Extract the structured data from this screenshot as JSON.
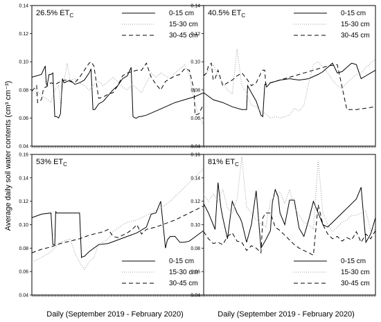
{
  "figure": {
    "ylabel": "Average daily soil water contents (cm³ cm⁻³)",
    "xlabel_left": "Daily (September 2019 - February 2020)",
    "xlabel_right": "Daily (September 2019 - February 2020)"
  },
  "chart_data": [
    {
      "type": "line",
      "title_main": "26.5% ET",
      "title_sub": "C",
      "ylim": [
        0.04,
        0.14
      ],
      "yticks": [
        "0.04",
        "0.06",
        "0.08",
        "0.10",
        "0.12",
        "0.14"
      ],
      "legend_position": "top-right",
      "x_range": [
        0,
        180
      ],
      "series": [
        {
          "name": "0-15 cm",
          "style": "solid",
          "x": [
            0,
            10,
            14,
            15,
            16,
            18,
            20,
            22,
            24,
            26,
            28,
            30,
            32,
            33,
            34,
            40,
            45,
            50,
            55,
            60,
            62,
            64,
            65,
            66,
            70,
            75,
            80,
            85,
            90,
            95,
            100,
            102,
            104,
            106,
            108,
            110,
            112,
            113,
            114,
            120,
            130,
            140,
            150,
            160,
            170,
            180
          ],
          "y": [
            0.089,
            0.091,
            0.097,
            0.085,
            0.083,
            0.091,
            0.091,
            0.092,
            0.061,
            0.061,
            0.06,
            0.063,
            0.088,
            0.086,
            0.085,
            0.087,
            0.084,
            0.085,
            0.087,
            0.092,
            0.095,
            0.066,
            0.066,
            0.066,
            0.07,
            0.072,
            0.076,
            0.08,
            0.083,
            0.088,
            0.09,
            0.093,
            0.096,
            0.061,
            0.06,
            0.06,
            0.061,
            0.061,
            0.061,
            0.062,
            0.065,
            0.068,
            0.071,
            0.073,
            0.075,
            0.078
          ]
        },
        {
          "name": "15-30 cm",
          "style": "dotted",
          "x": [
            0,
            4,
            5,
            6,
            10,
            15,
            20,
            22,
            25,
            28,
            30,
            33,
            35,
            37,
            40,
            45,
            50,
            55,
            60,
            65,
            70,
            75,
            80,
            85,
            90,
            95,
            100,
            105,
            110,
            115,
            120,
            125,
            130,
            135,
            140,
            145,
            150,
            155,
            160,
            165,
            170,
            175,
            180
          ],
          "y": [
            0.082,
            0.081,
            0.076,
            0.079,
            0.076,
            0.074,
            0.071,
            0.076,
            0.081,
            0.083,
            0.07,
            0.086,
            0.091,
            0.099,
            0.087,
            0.088,
            0.085,
            0.083,
            0.08,
            0.084,
            0.086,
            0.083,
            0.086,
            0.089,
            0.086,
            0.082,
            0.08,
            0.084,
            0.081,
            0.078,
            0.085,
            0.092,
            0.089,
            0.092,
            0.09,
            0.088,
            0.092,
            0.095,
            0.098,
            0.091,
            0.072,
            0.061,
            0.055
          ]
        },
        {
          "name": "30-45 cm",
          "style": "dashed",
          "x": [
            0,
            5,
            6,
            8,
            10,
            12,
            14,
            15,
            20,
            25,
            30,
            35,
            40,
            45,
            50,
            55,
            58,
            60,
            62,
            65,
            70,
            75,
            80,
            85,
            90,
            95,
            100,
            105,
            110,
            115,
            120,
            125,
            130,
            135,
            140,
            145,
            150,
            155,
            160,
            165,
            170,
            171,
            175,
            180
          ],
          "y": [
            0.079,
            0.083,
            0.071,
            0.072,
            0.073,
            0.08,
            0.082,
            0.082,
            0.085,
            0.084,
            0.086,
            0.087,
            0.086,
            0.085,
            0.089,
            0.094,
            0.097,
            0.099,
            0.1,
            0.097,
            0.074,
            0.075,
            0.077,
            0.078,
            0.083,
            0.09,
            0.092,
            0.093,
            0.094,
            0.094,
            0.099,
            0.089,
            0.084,
            0.08,
            0.086,
            0.088,
            0.09,
            0.091,
            0.095,
            0.094,
            0.08,
            0.062,
            0.063,
            0.07
          ]
        }
      ]
    },
    {
      "type": "line",
      "title_main": "40.5% ET",
      "title_sub": "C",
      "ylim": [
        0.04,
        0.14
      ],
      "yticks": [
        "0.04",
        "0.06",
        "0.08",
        "0.10",
        "0.12",
        "0.14"
      ],
      "legend_position": "top-right",
      "x_range": [
        0,
        180
      ],
      "series": [
        {
          "name": "0-15 cm",
          "style": "solid",
          "x": [
            0,
            10,
            20,
            30,
            40,
            45,
            46,
            50,
            55,
            60,
            62,
            64,
            65,
            66,
            70,
            80,
            90,
            100,
            110,
            120,
            125,
            130,
            135,
            140,
            145,
            150,
            155,
            160,
            165,
            170,
            175,
            180
          ],
          "y": [
            0.078,
            0.073,
            0.071,
            0.068,
            0.066,
            0.066,
            0.083,
            0.078,
            0.072,
            0.062,
            0.061,
            0.084,
            0.084,
            0.082,
            0.085,
            0.087,
            0.088,
            0.087,
            0.088,
            0.091,
            0.093,
            0.096,
            0.099,
            0.092,
            0.093,
            0.096,
            0.099,
            0.098,
            0.088,
            0.09,
            0.092,
            0.094
          ]
        },
        {
          "name": "15-30 cm",
          "style": "dotted",
          "x": [
            0,
            5,
            10,
            15,
            20,
            25,
            30,
            35,
            40,
            45,
            50,
            55,
            60,
            65,
            70,
            75,
            80,
            85,
            90,
            95,
            100,
            105,
            110,
            115,
            120,
            125,
            130,
            135,
            140,
            145,
            150,
            155,
            160,
            165,
            170,
            175,
            180
          ],
          "y": [
            0.089,
            0.094,
            0.098,
            0.09,
            0.085,
            0.08,
            0.077,
            0.109,
            0.083,
            0.078,
            0.069,
            0.068,
            0.065,
            0.063,
            0.06,
            0.061,
            0.06,
            0.061,
            0.062,
            0.067,
            0.065,
            0.069,
            0.085,
            0.098,
            0.1,
            0.096,
            0.092,
            0.087,
            0.083,
            0.081,
            0.085,
            0.088,
            0.091,
            0.092,
            0.096,
            0.099,
            0.102
          ]
        },
        {
          "name": "30-45 cm",
          "style": "dashed",
          "x": [
            0,
            3,
            5,
            8,
            10,
            12,
            14,
            15,
            20,
            25,
            30,
            35,
            40,
            45,
            50,
            55,
            60,
            62,
            64,
            65,
            70,
            80,
            90,
            100,
            110,
            120,
            130,
            140,
            150,
            160,
            170,
            180
          ],
          "y": [
            0.09,
            0.092,
            0.097,
            0.099,
            0.087,
            0.088,
            0.092,
            0.094,
            0.083,
            0.085,
            0.087,
            0.09,
            0.092,
            0.088,
            0.083,
            0.085,
            0.092,
            0.094,
            0.094,
            0.084,
            0.085,
            0.087,
            0.089,
            0.091,
            0.093,
            0.095,
            0.097,
            0.098,
            0.066,
            0.066,
            0.067,
            0.068
          ]
        }
      ]
    },
    {
      "type": "line",
      "title_main": "53% ET",
      "title_sub": "C",
      "ylim": [
        0.04,
        0.16
      ],
      "yticks": [
        "0.04",
        "0.06",
        "0.08",
        "0.10",
        "0.12",
        "0.14",
        "0.16"
      ],
      "legend_position": "bottom-right",
      "x_range": [
        0,
        180
      ],
      "series": [
        {
          "name": "0-15 cm",
          "style": "solid",
          "x": [
            0,
            10,
            20,
            22,
            24,
            25,
            26,
            30,
            35,
            40,
            45,
            50,
            52,
            54,
            55,
            60,
            70,
            80,
            90,
            100,
            110,
            120,
            125,
            130,
            135,
            140,
            142,
            145,
            150,
            155,
            160,
            165,
            170,
            175,
            180
          ],
          "y": [
            0.106,
            0.109,
            0.11,
            0.083,
            0.083,
            0.111,
            0.11,
            0.11,
            0.11,
            0.11,
            0.11,
            0.11,
            0.072,
            0.073,
            0.073,
            0.077,
            0.083,
            0.084,
            0.087,
            0.09,
            0.093,
            0.098,
            0.109,
            0.11,
            0.12,
            0.08,
            0.087,
            0.09,
            0.09,
            0.085,
            0.085,
            0.086,
            0.089,
            0.092,
            0.095
          ]
        },
        {
          "name": "15-30 cm",
          "style": "dotted",
          "x": [
            0,
            10,
            20,
            30,
            40,
            45,
            50,
            55,
            60,
            65,
            70,
            75,
            80,
            85,
            90,
            95,
            100,
            105,
            110,
            115,
            120,
            125,
            130,
            135,
            140,
            145,
            150,
            155,
            160,
            165,
            170,
            175,
            180
          ],
          "y": [
            0.068,
            0.072,
            0.077,
            0.085,
            0.088,
            0.076,
            0.068,
            0.062,
            0.068,
            0.072,
            0.084,
            0.085,
            0.088,
            0.094,
            0.097,
            0.1,
            0.102,
            0.103,
            0.104,
            0.106,
            0.108,
            0.11,
            0.112,
            0.114,
            0.117,
            0.12,
            0.124,
            0.128,
            0.132,
            0.136,
            0.14,
            0.144,
            0.148
          ]
        },
        {
          "name": "30-45 cm",
          "style": "dashed",
          "x": [
            0,
            10,
            20,
            30,
            40,
            50,
            60,
            70,
            75,
            80,
            85,
            90,
            95,
            100,
            105,
            110,
            115,
            120,
            130,
            140,
            150,
            160,
            170,
            180
          ],
          "y": [
            0.076,
            0.079,
            0.081,
            0.084,
            0.086,
            0.088,
            0.091,
            0.093,
            0.094,
            0.096,
            0.09,
            0.089,
            0.091,
            0.093,
            0.096,
            0.1,
            0.092,
            0.096,
            0.098,
            0.101,
            0.104,
            0.108,
            0.112,
            0.116
          ]
        }
      ]
    },
    {
      "type": "line",
      "title_main": "81% ET",
      "title_sub": "C",
      "ylim": [
        0.04,
        0.16
      ],
      "yticks": [
        "0.04",
        "0.06",
        "0.08",
        "0.10",
        "0.12",
        "0.14",
        "0.16"
      ],
      "legend_position": "bottom-right",
      "x_range": [
        0,
        180
      ],
      "series": [
        {
          "name": "0-15 cm",
          "style": "solid",
          "x": [
            0,
            5,
            10,
            12,
            15,
            18,
            20,
            25,
            30,
            35,
            38,
            40,
            45,
            50,
            55,
            60,
            65,
            70,
            72,
            75,
            78,
            80,
            85,
            90,
            95,
            100,
            105,
            110,
            115,
            120,
            125,
            130,
            135,
            140,
            145,
            150,
            155,
            160,
            165,
            170,
            175,
            180
          ],
          "y": [
            0.118,
            0.11,
            0.1,
            0.096,
            0.136,
            0.115,
            0.106,
            0.088,
            0.12,
            0.11,
            0.106,
            0.102,
            0.085,
            0.1,
            0.129,
            0.08,
            0.087,
            0.095,
            0.119,
            0.13,
            0.124,
            0.11,
            0.1,
            0.121,
            0.121,
            0.097,
            0.09,
            0.104,
            0.12,
            0.11,
            0.1,
            0.098,
            0.102,
            0.106,
            0.11,
            0.114,
            0.118,
            0.122,
            0.132,
            0.085,
            0.092,
            0.106
          ]
        },
        {
          "name": "15-30 cm",
          "style": "dotted",
          "x": [
            0,
            5,
            10,
            15,
            20,
            25,
            30,
            35,
            40,
            45,
            50,
            55,
            60,
            65,
            70,
            75,
            80,
            85,
            90,
            95,
            100,
            105,
            110,
            115,
            120,
            125,
            130,
            135,
            140,
            145,
            150,
            155,
            160,
            165,
            170,
            175,
            180
          ],
          "y": [
            0.126,
            0.12,
            0.126,
            0.12,
            0.13,
            0.114,
            0.11,
            0.122,
            0.158,
            0.115,
            0.11,
            0.104,
            0.101,
            0.098,
            0.12,
            0.125,
            0.128,
            0.118,
            0.13,
            0.115,
            0.108,
            0.102,
            0.1,
            0.096,
            0.155,
            0.11,
            0.1,
            0.094,
            0.098,
            0.102,
            0.104,
            0.108,
            0.108,
            0.11,
            0.112,
            0.095,
            0.096
          ]
        },
        {
          "name": "30-45 cm",
          "style": "dashed",
          "x": [
            0,
            5,
            10,
            15,
            20,
            25,
            30,
            35,
            40,
            45,
            50,
            55,
            60,
            62,
            65,
            70,
            75,
            80,
            85,
            90,
            95,
            100,
            105,
            110,
            115,
            120,
            125,
            130,
            135,
            140,
            145,
            150,
            155,
            160,
            165,
            170,
            175,
            180
          ],
          "y": [
            0.094,
            0.088,
            0.084,
            0.085,
            0.083,
            0.09,
            0.093,
            0.086,
            0.085,
            0.078,
            0.082,
            0.08,
            0.076,
            0.106,
            0.11,
            0.11,
            0.098,
            0.095,
            0.091,
            0.087,
            0.083,
            0.08,
            0.078,
            0.076,
            0.074,
            0.117,
            0.1,
            0.092,
            0.088,
            0.09,
            0.086,
            0.089,
            0.087,
            0.094,
            0.085,
            0.092,
            0.088,
            0.095
          ]
        }
      ]
    }
  ]
}
